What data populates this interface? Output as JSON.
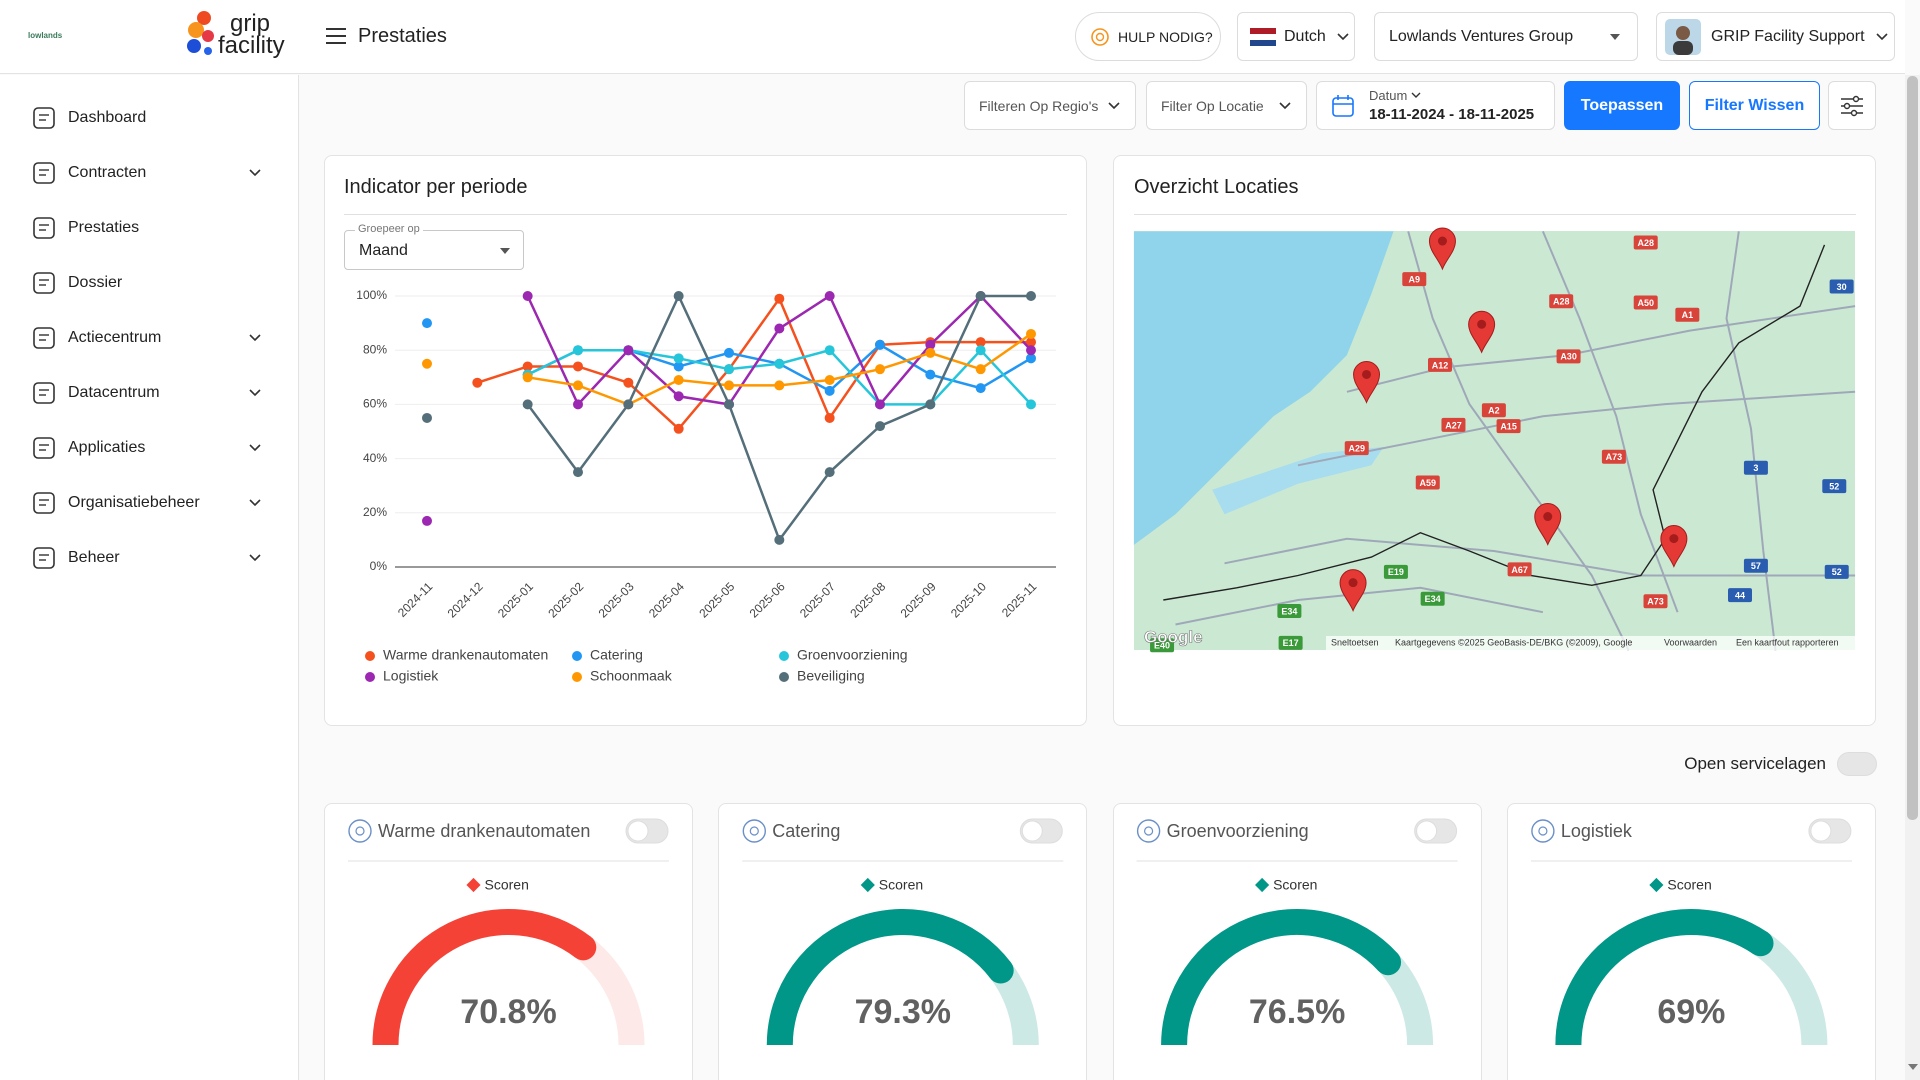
{
  "header": {
    "logo_small": "lowlands",
    "logo_top": "grip",
    "logo_bottom": "facility",
    "page_title": "Prestaties",
    "help": "HULP NODIG?",
    "language": "Dutch",
    "organization": "Lowlands Ventures Group",
    "user": "GRIP Facility Support"
  },
  "sidebar": {
    "items": [
      {
        "label": "Dashboard",
        "expandable": false
      },
      {
        "label": "Contracten",
        "expandable": true
      },
      {
        "label": "Prestaties",
        "expandable": false
      },
      {
        "label": "Dossier",
        "expandable": false
      },
      {
        "label": "Actiecentrum",
        "expandable": true
      },
      {
        "label": "Datacentrum",
        "expandable": true
      },
      {
        "label": "Applicaties",
        "expandable": true
      },
      {
        "label": "Organisatiebeheer",
        "expandable": true
      },
      {
        "label": "Beheer",
        "expandable": true
      }
    ]
  },
  "filters": {
    "region": "Filteren Op Regio's",
    "location": "Filter Op Locatie",
    "date_label": "Datum",
    "date_range": "18-11-2024 - 18-11-2025",
    "apply": "Toepassen",
    "clear": "Filter Wissen"
  },
  "chart_controls": {
    "group_label": "Groepeer op",
    "group_value": "Maand"
  },
  "chart_data": [
    {
      "type": "line",
      "title": "Indicator per periode",
      "categories": [
        "2024-11",
        "2024-12",
        "2025-01",
        "2025-02",
        "2025-03",
        "2025-04",
        "2025-05",
        "2025-06",
        "2025-07",
        "2025-08",
        "2025-09",
        "2025-10",
        "2025-11"
      ],
      "series": [
        {
          "name": "Warme drankenautomaten",
          "color": "#f4511e",
          "values": [
            null,
            68,
            74,
            74,
            68,
            51,
            73,
            99,
            55,
            82,
            83,
            83,
            83
          ]
        },
        {
          "name": "Catering",
          "color": "#2196f3",
          "values": [
            90,
            null,
            71,
            80,
            80,
            74,
            79,
            75,
            65,
            82,
            71,
            66,
            77
          ]
        },
        {
          "name": "Groenvoorziening",
          "color": "#26c6da",
          "values": [
            null,
            null,
            71,
            80,
            80,
            77,
            73,
            75,
            80,
            60,
            60,
            80,
            60
          ]
        },
        {
          "name": "Logistiek",
          "color": "#9c27b0",
          "values": [
            17,
            null,
            100,
            60,
            80,
            63,
            60,
            88,
            100,
            60,
            82,
            100,
            80
          ]
        },
        {
          "name": "Schoonmaak",
          "color": "#ff9800",
          "values": [
            75,
            null,
            70,
            67,
            60,
            69,
            67,
            67,
            69,
            73,
            79,
            73,
            86
          ]
        },
        {
          "name": "Beveiliging",
          "color": "#546e7a",
          "values": [
            55,
            null,
            60,
            35,
            60,
            100,
            60,
            10,
            35,
            52,
            60,
            100,
            100
          ]
        }
      ],
      "ylim": [
        0,
        100
      ],
      "yticks": [
        {
          "value": 0,
          "label": "0%"
        },
        {
          "value": 20,
          "label": "20%"
        },
        {
          "value": 40,
          "label": "40%"
        },
        {
          "value": 60,
          "label": "60%"
        },
        {
          "value": 80,
          "label": "80%"
        },
        {
          "value": 100,
          "label": "100%"
        }
      ],
      "grid": true
    },
    {
      "type": "gauge",
      "title": "Warme drankenautomaten",
      "legend": "Scoren",
      "value": 70.8,
      "value_label": "70.8%",
      "range": [
        0,
        100
      ],
      "color": "#f44336",
      "track_color": "#fde9e8"
    },
    {
      "type": "gauge",
      "title": "Catering",
      "legend": "Scoren",
      "value": 79.3,
      "value_label": "79.3%",
      "range": [
        0,
        100
      ],
      "color": "#009688",
      "track_color": "#cde9e5"
    },
    {
      "type": "gauge",
      "title": "Groenvoorziening",
      "legend": "Scoren",
      "value": 76.5,
      "value_label": "76.5%",
      "range": [
        0,
        100
      ],
      "color": "#009688",
      "track_color": "#cde9e5"
    },
    {
      "type": "gauge",
      "title": "Logistiek",
      "legend": "Scoren",
      "value": 69,
      "value_label": "69%",
      "range": [
        0,
        100
      ],
      "color": "#009688",
      "track_color": "#cde9e5"
    }
  ],
  "map": {
    "title": "Overzicht Locaties",
    "road_labels": [
      "A9",
      "A28",
      "A28",
      "A50",
      "A1",
      "30",
      "A12",
      "A30",
      "A2",
      "A15",
      "A27",
      "A29",
      "A73",
      "A59",
      "3",
      "52",
      "E19",
      "A67",
      "57",
      "52",
      "E34",
      "E34",
      "A73",
      "44",
      "E17",
      "E40"
    ],
    "brand": "Google",
    "attribution": [
      "Sneltoetsen",
      "Kaartgegevens ©2025 GeoBasis-DE/BKG (©2009), Google",
      "Voorwaarden",
      "Een kaartfout rapporteren"
    ]
  },
  "service_layers": {
    "label": "Open servicelagen"
  }
}
